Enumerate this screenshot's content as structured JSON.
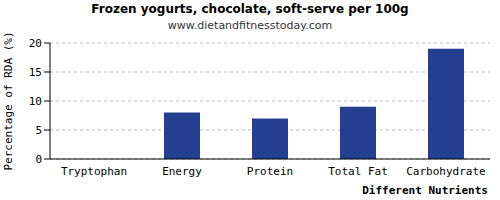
{
  "chart_data": {
    "type": "bar",
    "title": "Frozen yogurts, chocolate, soft-serve per 100g",
    "subtitle": "www.dietandfitnesstoday.com",
    "x_label": "Different Nutrients",
    "y_label": "Percentage of RDA (%)",
    "categories": [
      "Tryptophan",
      "Energy",
      "Protein",
      "Total Fat",
      "Carbohydrate"
    ],
    "values": [
      0,
      8,
      7,
      9,
      19
    ],
    "color": "#243f8f",
    "ylim": [
      0,
      20
    ],
    "yticks": [
      0,
      5,
      10,
      15,
      20
    ],
    "grid": true
  }
}
